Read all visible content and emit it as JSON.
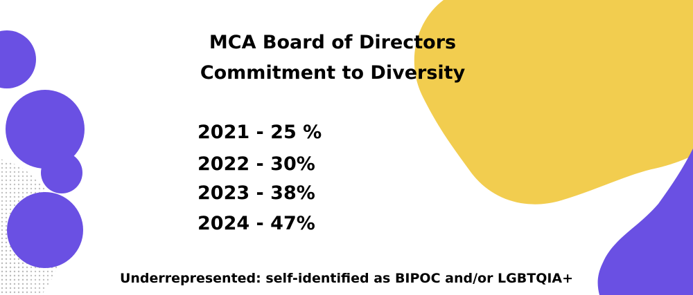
{
  "title": {
    "line1": "MCA Board of Directors",
    "line2": "Commitment to Diversity"
  },
  "stats": [
    {
      "text": "2021 - 25 %"
    },
    {
      "text": "2022 - 30%"
    },
    {
      "text": "2023 - 38%"
    },
    {
      "text": "2024 - 47%"
    }
  ],
  "footnote": "Underrepresented: self-identified as BIPOC and/or LGBTQIA+",
  "colors": {
    "yellow_blob": "#f2cd4f",
    "purple": "#6a50e3",
    "halftone_dots": "#b9b9b9",
    "text": "#000000",
    "background": "#ffffff"
  }
}
